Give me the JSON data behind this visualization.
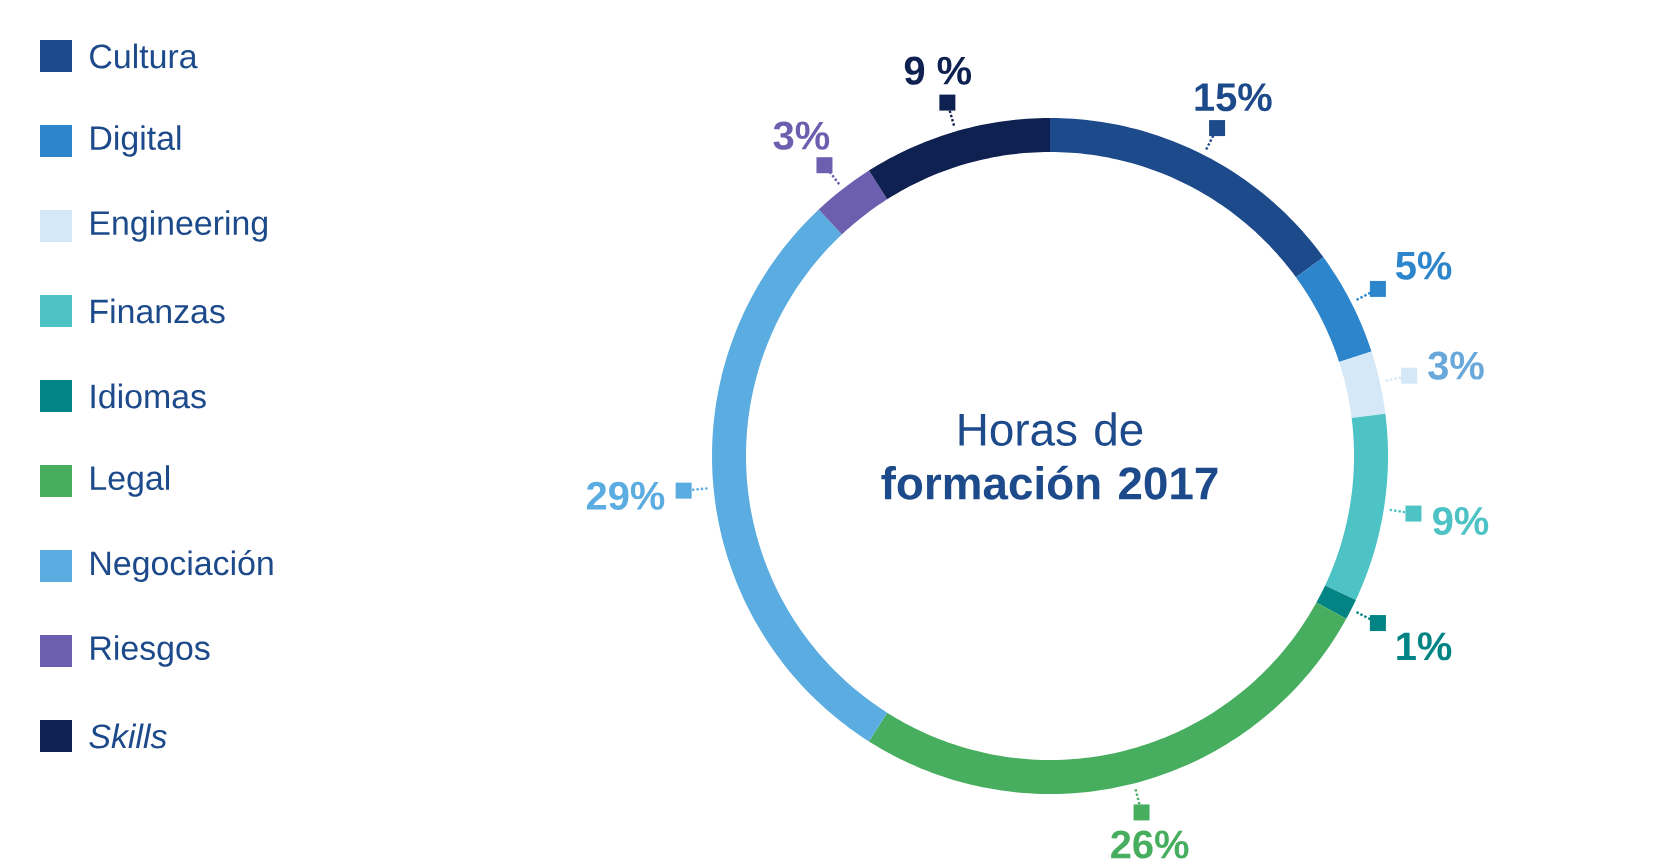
{
  "chart_data": {
    "type": "donut",
    "title": "Horas de **formación 2017**",
    "categories": [
      "Cultura",
      "Digital",
      "Engineering",
      "Finanzas",
      "Idiomas",
      "Legal",
      "Negociación",
      "Riesgos",
      "*Skills*"
    ],
    "values": [
      15,
      5,
      3,
      9,
      1,
      26,
      29,
      3,
      9
    ],
    "colors": [
      "#1d4a8a",
      "#2d86cc",
      "#d4e8f7",
      "#4ec3c5",
      "#028484",
      "#48ae5f",
      "#5bace0",
      "#6d5faf",
      "#0f2150"
    ],
    "value_labels": [
      "15%",
      "5%",
      "3%",
      "9%",
      "1%",
      "26%",
      "29%",
      "3%",
      "9 %"
    ],
    "legend": "left"
  }
}
